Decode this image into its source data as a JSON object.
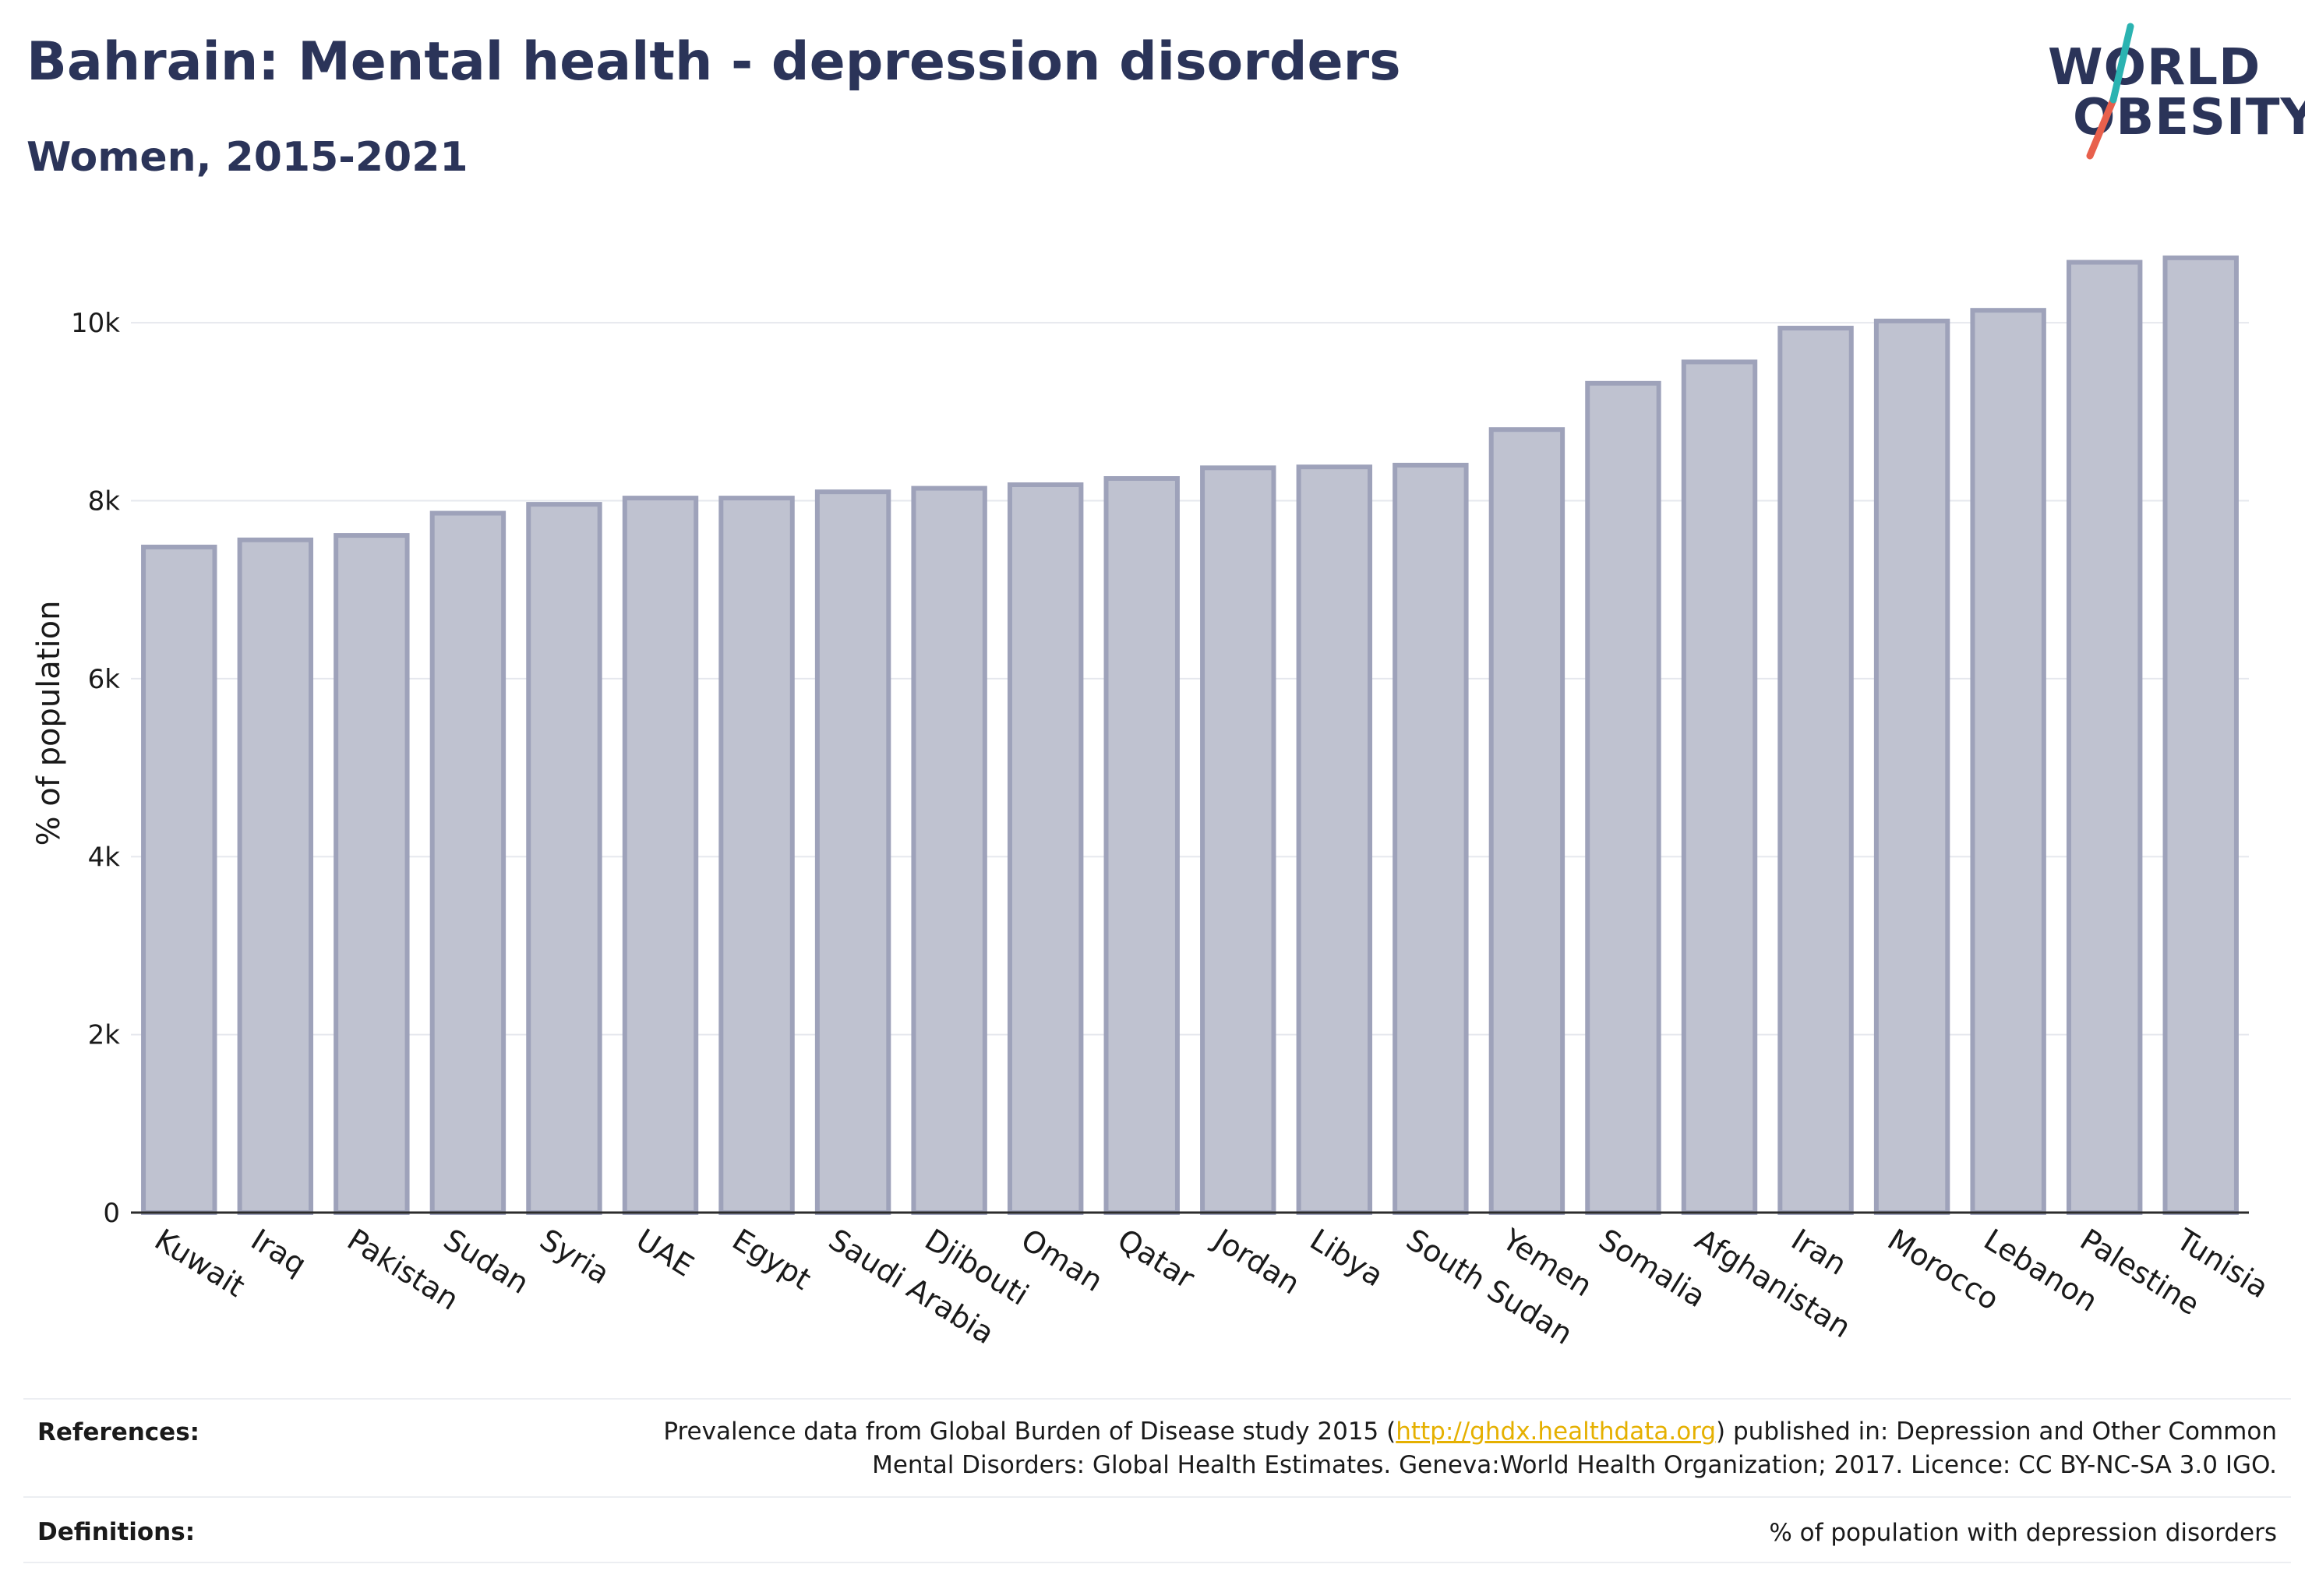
{
  "header": {
    "title": "Bahrain: Mental health - depression disorders",
    "subtitle": "Women, 2015-2021"
  },
  "logo": {
    "line1": "WORLD",
    "line2": "OBESITY",
    "accent_teal": "#2bb3b1",
    "accent_coral": "#e8604c"
  },
  "colors": {
    "text": "#2b3459",
    "bar_fill": "#bfc2d0",
    "bar_stroke": "#9ea2ba",
    "grid": "#e6e8ee",
    "axis": "#2b2b2b"
  },
  "chart_data": {
    "type": "bar",
    "title": "",
    "xlabel": "",
    "ylabel": "% of population",
    "ylim": [
      0,
      11000
    ],
    "yticks": [
      0,
      2000,
      4000,
      6000,
      8000,
      10000
    ],
    "ytick_labels": [
      "0",
      "2k",
      "4k",
      "6k",
      "8k",
      "10k"
    ],
    "grid": true,
    "categories": [
      "Kuwait",
      "Iraq",
      "Pakistan",
      "Sudan",
      "Syria",
      "UAE",
      "Egypt",
      "Saudi Arabia",
      "Djibouti",
      "Oman",
      "Qatar",
      "Jordan",
      "Libya",
      "South Sudan",
      "Yemen",
      "Somalia",
      "Afghanistan",
      "Iran",
      "Morocco",
      "Lebanon",
      "Palestine",
      "Tunisia"
    ],
    "values": [
      7480,
      7560,
      7610,
      7860,
      7960,
      8030,
      8030,
      8100,
      8140,
      8180,
      8250,
      8370,
      8380,
      8400,
      8800,
      9320,
      9560,
      9940,
      10020,
      10140,
      10680,
      10730
    ]
  },
  "footer": {
    "references_label": "References:",
    "references_text_before": "Prevalence data from Global Burden of Disease study 2015 (",
    "references_link": "http://ghdx.healthdata.org",
    "references_text_after": ") published in: Depression and Other Common",
    "references_line2": "Mental Disorders: Global Health Estimates. Geneva:World Health Organization; 2017. Licence: CC BY-NC-SA 3.0 IGO.",
    "definitions_label": "Definitions:",
    "definitions_text": "% of population with depression disorders"
  }
}
